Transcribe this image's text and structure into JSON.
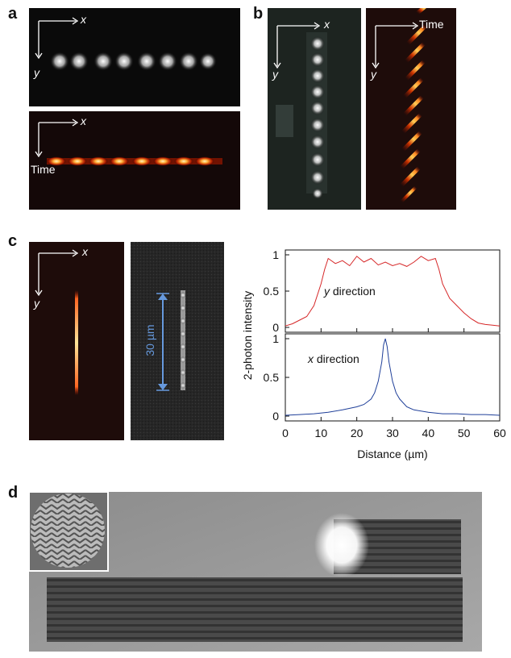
{
  "panels": {
    "a": {
      "label": "a",
      "top": {
        "x_label": "x",
        "y_label": "y"
      },
      "bottom": {
        "x_label": "x",
        "y_label": "Time"
      }
    },
    "b": {
      "label": "b",
      "left": {
        "x_label": "x",
        "y_label": "y"
      },
      "right": {
        "x_label": "Time",
        "y_label": "y"
      }
    },
    "c": {
      "label": "c",
      "left": {
        "x_label": "x",
        "y_label": "y"
      },
      "scale_bar_text": "30 µm"
    },
    "d": {
      "label": "d"
    }
  },
  "chart_data": {
    "type": "line",
    "ylabel": "2-photon intensity",
    "xlabel": "Distance (µm)",
    "xlim": [
      0,
      60
    ],
    "xticks": [
      "0",
      "10",
      "20",
      "30",
      "40",
      "50",
      "60"
    ],
    "subplots": [
      {
        "annotation_italic": "y",
        "annotation_text": " direction",
        "color": "#d62728",
        "ylim": [
          0,
          1
        ],
        "yticks": [
          "0",
          "0.5",
          "1"
        ],
        "x": [
          0,
          2,
          4,
          6,
          8,
          10,
          11,
          12,
          14,
          16,
          18,
          20,
          22,
          24,
          26,
          28,
          30,
          32,
          34,
          36,
          38,
          40,
          42,
          43,
          44,
          46,
          48,
          50,
          52,
          54,
          56,
          58,
          60
        ],
        "y": [
          0.02,
          0.05,
          0.1,
          0.15,
          0.3,
          0.6,
          0.8,
          0.95,
          0.88,
          0.92,
          0.85,
          0.98,
          0.9,
          0.95,
          0.86,
          0.9,
          0.85,
          0.88,
          0.84,
          0.9,
          0.98,
          0.92,
          0.95,
          0.8,
          0.6,
          0.4,
          0.3,
          0.2,
          0.12,
          0.06,
          0.04,
          0.03,
          0.02
        ]
      },
      {
        "annotation_italic": "x",
        "annotation_text": " direction",
        "color": "#1f3f99",
        "ylim": [
          0,
          1
        ],
        "yticks": [
          "0",
          "0.5",
          "1"
        ],
        "x": [
          0,
          4,
          8,
          12,
          16,
          20,
          22,
          24,
          25,
          26,
          27,
          27.5,
          28,
          28.5,
          29,
          30,
          31,
          32,
          34,
          36,
          40,
          44,
          48,
          52,
          56,
          60
        ],
        "y": [
          0.01,
          0.02,
          0.03,
          0.05,
          0.08,
          0.12,
          0.15,
          0.22,
          0.3,
          0.45,
          0.7,
          0.92,
          1.0,
          0.9,
          0.7,
          0.45,
          0.3,
          0.22,
          0.12,
          0.08,
          0.05,
          0.03,
          0.03,
          0.02,
          0.02,
          0.01
        ]
      }
    ]
  },
  "colors": {
    "spot_glow": "#ffb347",
    "scale_bar": "#6699dd",
    "red_trace": "#d62728",
    "blue_trace": "#1f3f99"
  }
}
